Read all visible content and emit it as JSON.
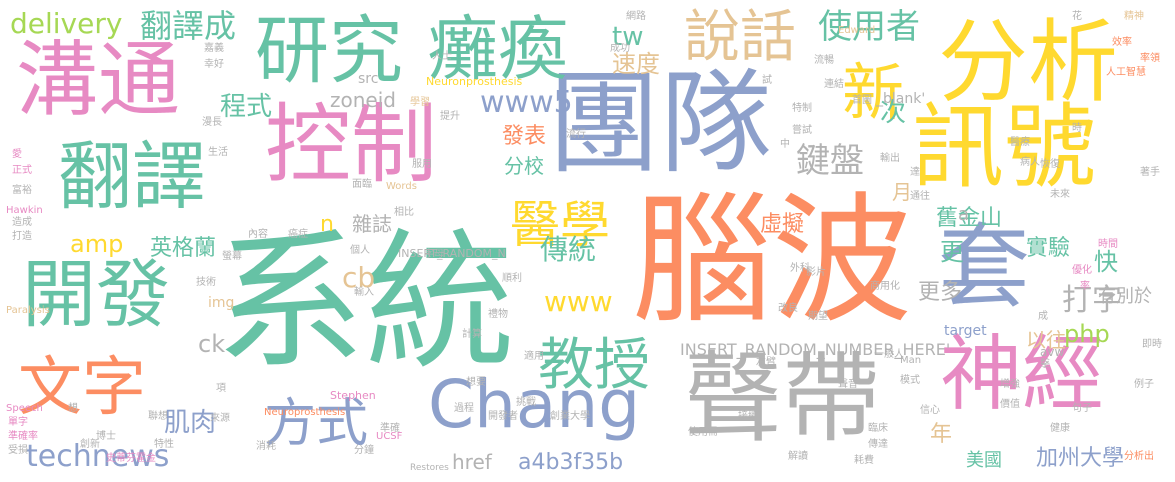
{
  "palette": {
    "green": "#66c2a5",
    "orange": "#fc8d62",
    "blue": "#8da0cb",
    "pink": "#e78ac3",
    "lime": "#a6d854",
    "yellow": "#ffd92f",
    "tan": "#e5c494",
    "gray": "#b3b3b3"
  },
  "words": {
    "xitong": "系統",
    "naobo": "腦波",
    "tuandui": "團隊",
    "goutong": "溝通",
    "kongzhi": "控制",
    "fenxi": "分析",
    "xunhao": "訊號",
    "shengdai": "聲帶",
    "yanjiu": "研究",
    "tanhuan": "癱瘓",
    "fanyi": "翻譯",
    "kaifa": "開發",
    "wenzi": "文字",
    "tao": "套",
    "shenjing": "神經",
    "chang": "Chang",
    "shuohua": "說話",
    "xin": "新",
    "jiaoshou": "教授",
    "fangshi": "方式",
    "yixue": "醫學",
    "technews": "technews",
    "delivery": "delivery",
    "fanyicheng": "翻譯成",
    "shiyongzhe": "使用者",
    "jianpan": "鍵盤",
    "www5": "www5",
    "tw": "tw",
    "suodu": "速度",
    "www": "www",
    "chengshi": "程式",
    "amp": "amp",
    "yinggelan": "英格蘭",
    "chuantong": "傳統",
    "dazi": "打字",
    "php": "php",
    "jirou": "肌肉",
    "cb": "cb",
    "a4b": "a4b3f35b",
    "href": "href",
    "fabiao": "發表",
    "fenxiao": "分校",
    "zazhi": "雜誌",
    "xuni": "虛擬",
    "jiujinshan": "舊金山",
    "shiyan": "實驗",
    "geng": "更",
    "gengduo": "更多",
    "kuai": "快",
    "youbieyu": "有別於",
    "yiwang": "以往",
    "ci": "次",
    "nian": "年",
    "meiguo": "美國",
    "jiazhou": "加州大學",
    "yue": "月",
    "n": "n",
    "zoneid": "zoneid",
    "insertLong": "INSERT_RANDOM_NUMBER_HERE'",
    "insertShort": "INSERT_RANDOM_N",
    "blank": "_blank'",
    "a": "a",
    "ck": "ck",
    "img": "img",
    "src": "src",
    "target": "target",
    "avw": "avw",
    "neuro1": "Neuronprosthesis",
    "neuro2": "Neuroprosthesis",
    "wangluo": "網路",
    "chenggong": "成功",
    "shi": "試",
    "edward": "Edward",
    "liuchang": "流暢",
    "techang": "特制",
    "changshi": "嘗試",
    "zhong": "中",
    "lianxiang": "連結",
    "renshi": "人士",
    "rengong": "人工智慧",
    "shengyin": "聲音",
    "shoudu": "首圖",
    "shuchu": "輸出",
    "xuexi": "學習",
    "tisheng": "提升",
    "jingshen": "精神",
    "xiaolv": "效率",
    "lvling": "率領",
    "hua": "花",
    "shi2": "時",
    "zhuoshou": "著手",
    "shijian": "時間",
    "dayu": "達",
    "tongwang": "通往",
    "xinxin": "信心",
    "mofang": "模式",
    "juzi": "句子",
    "lizi": "例子",
    "jishi": "即時",
    "hawkin": "Hawkin",
    "paralysis": "Paralysis",
    "speech": "Speech",
    "words": "Words",
    "stephen": "Stephen",
    "ucsf": "UCSF",
    "man": "Man",
    "restores": "Restores",
    "shiyongxing": "適用",
    "xiaohao": "消耗",
    "geren": "個人",
    "zuobi": "左臂",
    "zaocheng": "造成",
    "dazao": "打造",
    "zhengshi": "正式",
    "ai": "愛",
    "fuyu": "富裕",
    "danzi": "單字",
    "zhunque": "準確率",
    "shousun": "受損",
    "boshi": "博士",
    "jixing": "特性",
    "xiang": "想",
    "lianxiang2": "聯想",
    "shiliao": "史蒂芬霍金",
    "yiban": "一般人",
    "jiedu": "解讀",
    "fenxichu": "分析出",
    "shiyongxu": "使用需",
    "chuanda": "傳達",
    "haoshi": "耗費",
    "fenzhong": "分鐘",
    "linchuang": "臨床",
    "ji": "擊",
    "gaishan": "改良",
    "yingpian": "影片",
    "jiangwang": "期望",
    "shangyong": "商用化",
    "waike": "外科",
    "jiedai": "接續",
    "chuangxin": "創新",
    "zimu": "字母",
    "jinsuan": "計算",
    "liwu": "禮物",
    "yinmu": "螢幕",
    "neirong": "內容",
    "aizheng": "癌症",
    "jishu": "技術",
    "xiang2": "項",
    "shuru": "輸入",
    "mianfu": "面臨",
    "xiangbi": "相比",
    "kaifazhe": "開發者",
    "zhunque2": "準確",
    "guocheng": "過程",
    "tiaozhan": "挑戰",
    "xiangyao": "想要",
    "laiyuan": "來源",
    "weilai": "未來",
    "shicheng": "成",
    "jiankang": "健康",
    "qiangda": "增強",
    "jiazhi": "價值",
    "xingfu": "幸好",
    "manchang": "漫長",
    "jianshi": "嘉義",
    "shenghuo": "生活",
    "chuangye": "創業大學",
    "fuyong": "服用",
    "liuhang": "流行",
    "bingren": "病人",
    "yiliao": "醫療",
    "huifu": "恢復",
    "shunli": "順利",
    "lü": "率",
    "youhua": "優化"
  }
}
